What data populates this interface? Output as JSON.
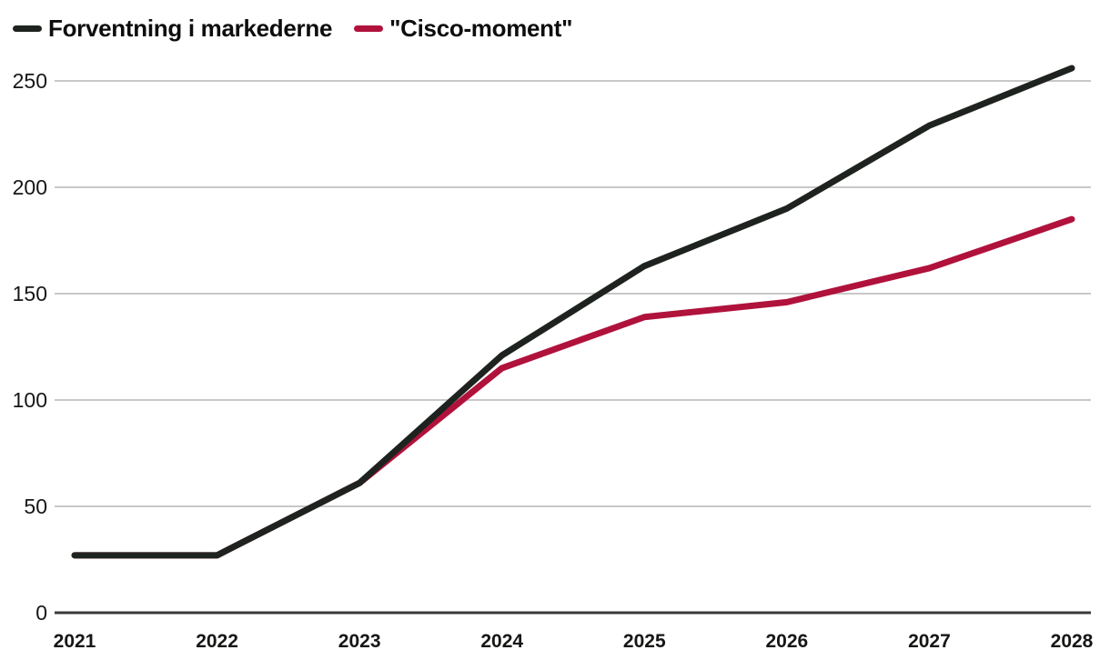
{
  "legend": [
    {
      "id": "market-expectation",
      "label": "Forventning i markederne",
      "color": "#1f231f"
    },
    {
      "id": "cisco-moment",
      "label": "\"Cisco-moment\"",
      "color": "#b0123c"
    }
  ],
  "colors": {
    "grid": "#c8c8c8",
    "axis": "#3a3a38",
    "text": "#161615",
    "background": "#ffffff"
  },
  "chart_data": {
    "type": "line",
    "title": "",
    "xlabel": "",
    "ylabel": "",
    "x": [
      "2021",
      "2022",
      "2023",
      "2024",
      "2025",
      "2026",
      "2027",
      "2028"
    ],
    "series": [
      {
        "id": "market-expectation",
        "name": "Forventning i markederne",
        "color": "#1f231f",
        "values": [
          27,
          27,
          61,
          121,
          163,
          190,
          229,
          256
        ]
      },
      {
        "id": "cisco-moment",
        "name": "\"Cisco-moment\"",
        "color": "#b0123c",
        "values": [
          27,
          27,
          61,
          115,
          139,
          146,
          162,
          185
        ]
      }
    ],
    "ylim": [
      0,
      250
    ],
    "yticks": [
      0,
      50,
      100,
      150,
      200,
      250
    ],
    "grid": "horizontal-only",
    "legend_position": "top-left",
    "line_width": 7
  }
}
